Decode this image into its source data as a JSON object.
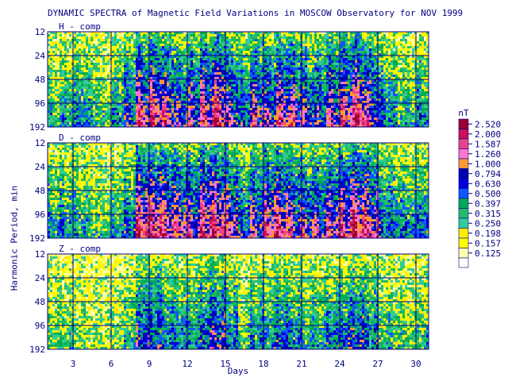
{
  "chart_data": {
    "type": "heatmap",
    "title": "DYNAMIC SPECTRA of Magnetic Field Variations in MOSCOW Observatory for NOV 1999",
    "xlabel": "Days",
    "ylabel": "Harmonic Period, min",
    "xlim": [
      1,
      31
    ],
    "x_ticks": [
      3,
      6,
      9,
      12,
      15,
      18,
      21,
      24,
      27,
      30
    ],
    "y_ticks": [
      12,
      24,
      48,
      96,
      192
    ],
    "y_scale": "log",
    "unit": "nT",
    "grid": true,
    "legend_position": "right",
    "color_levels": [
      {
        "value": "2.520",
        "color": "#990033"
      },
      {
        "value": "2.000",
        "color": "#cc1155"
      },
      {
        "value": "1.587",
        "color": "#e8448a"
      },
      {
        "value": "1.260",
        "color": "#ff77cc"
      },
      {
        "value": "1.000",
        "color": "#ff9933"
      },
      {
        "value": "0.794",
        "color": "#0000aa"
      },
      {
        "value": "0.630",
        "color": "#0000dd"
      },
      {
        "value": "0.500",
        "color": "#1155ff"
      },
      {
        "value": "0.397",
        "color": "#00aa55"
      },
      {
        "value": "0.315",
        "color": "#22bb66"
      },
      {
        "value": "0.250",
        "color": "#33cc99"
      },
      {
        "value": "0.198",
        "color": "#ffee00"
      },
      {
        "value": "0.157",
        "color": "#ffff00"
      },
      {
        "value": "0.125",
        "color": "#ffffaa"
      }
    ],
    "panels": [
      {
        "label": "H - comp",
        "activity": [
          0.35,
          0.4,
          0.45,
          0.4,
          0.3,
          0.45,
          0.6,
          0.85,
          0.9,
          0.8,
          0.65,
          0.7,
          0.85,
          0.95,
          0.7,
          0.55,
          0.75,
          0.7,
          0.85,
          0.8,
          0.65,
          0.6,
          0.75,
          0.85,
          0.95,
          0.75,
          0.5,
          0.4,
          0.35,
          0.45
        ]
      },
      {
        "label": "D - comp",
        "activity": [
          0.4,
          0.45,
          0.4,
          0.35,
          0.3,
          0.4,
          0.55,
          0.95,
          0.95,
          0.85,
          0.8,
          0.75,
          0.95,
          0.95,
          0.8,
          0.55,
          0.7,
          0.85,
          0.9,
          0.75,
          0.7,
          0.7,
          0.8,
          0.9,
          0.95,
          0.85,
          0.55,
          0.5,
          0.45,
          0.5
        ]
      },
      {
        "label": "Z - comp",
        "activity": [
          0.3,
          0.3,
          0.25,
          0.2,
          0.2,
          0.25,
          0.35,
          0.6,
          0.6,
          0.5,
          0.45,
          0.45,
          0.6,
          0.65,
          0.5,
          0.3,
          0.45,
          0.45,
          0.55,
          0.45,
          0.4,
          0.4,
          0.5,
          0.55,
          0.6,
          0.5,
          0.35,
          0.3,
          0.3,
          0.35
        ]
      }
    ]
  }
}
